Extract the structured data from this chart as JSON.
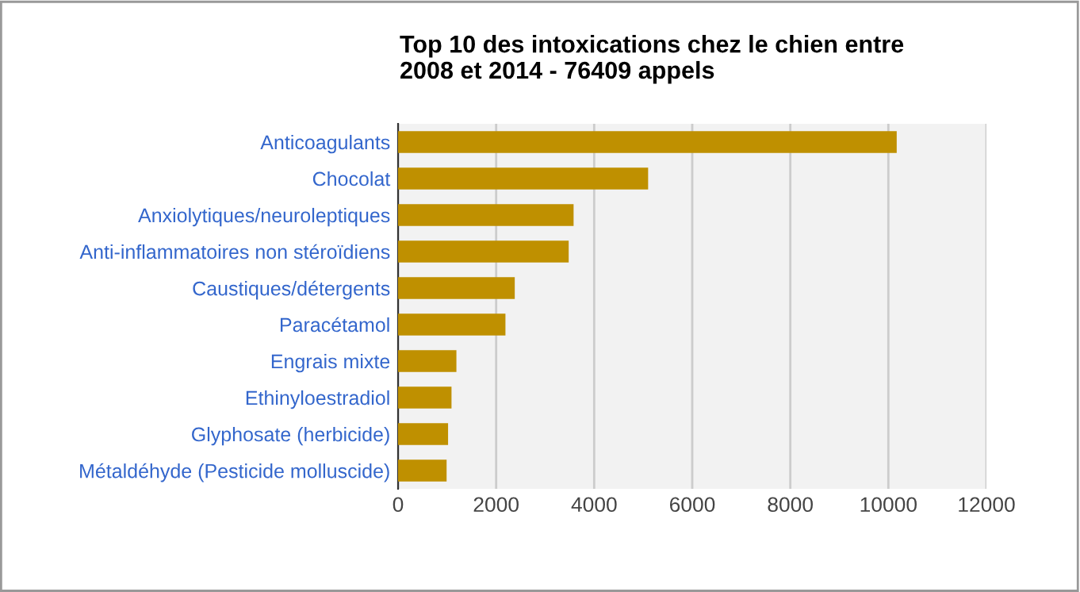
{
  "chart_data": {
    "type": "bar",
    "orientation": "horizontal",
    "title": "Top 10 des intoxications chez le chien entre\n2008 et 2014 - 76409 appels",
    "categories": [
      "Anticoagulants",
      "Chocolat",
      "Anxiolytiques/neuroleptiques",
      "Anti-inflammatoires non stéroïdiens",
      "Caustiques/détergents",
      "Paracétamol",
      "Engrais mixte",
      "Ethinyloestradiol",
      "Glyphosate (herbicide)",
      "Métaldéhyde (Pesticide molluscide)"
    ],
    "values": [
      10170,
      5100,
      3580,
      3480,
      2380,
      2190,
      1190,
      1090,
      1020,
      990
    ],
    "color": "#bf9000",
    "xlim": [
      0,
      12000
    ],
    "xticks": [
      0,
      2000,
      4000,
      6000,
      8000,
      10000,
      12000
    ],
    "grid": "x",
    "legend": false
  }
}
